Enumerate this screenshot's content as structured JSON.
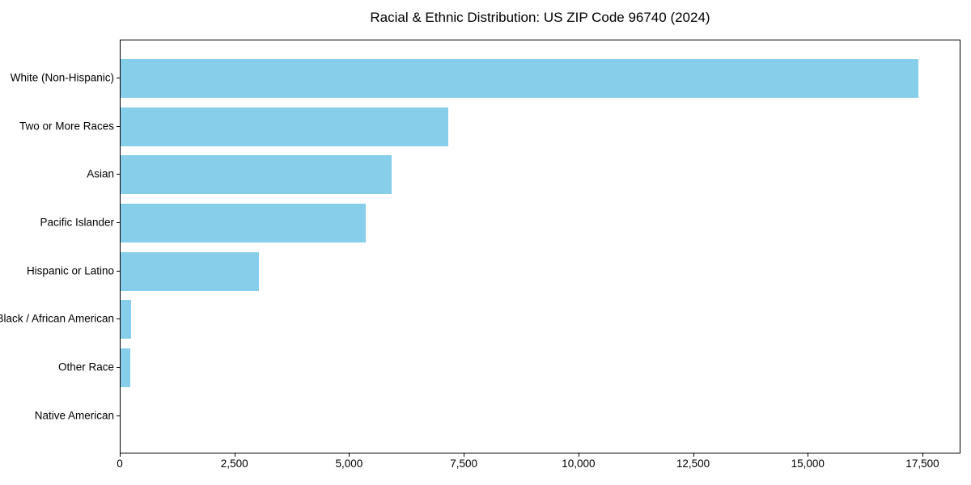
{
  "title": "Racial & Ethnic Distribution: US ZIP Code 96740 (2024)",
  "colors": {
    "bar": "#87CEEB",
    "axis": "#000000",
    "text": "#000000",
    "background": "#FFFFFF"
  },
  "chart_data": {
    "type": "bar",
    "orientation": "horizontal",
    "title": "Racial & Ethnic Distribution: US ZIP Code 96740 (2024)",
    "categories": [
      "White (Non-Hispanic)",
      "Two or More Races",
      "Asian",
      "Pacific Islander",
      "Hispanic or Latino",
      "Black / African American",
      "Other Race",
      "Native American"
    ],
    "values": [
      17430,
      7150,
      5915,
      5350,
      3020,
      230,
      215,
      0
    ],
    "xlabel": "",
    "ylabel": "",
    "xlim": [
      0,
      18330
    ],
    "xticks": [
      0,
      2500,
      5000,
      7500,
      10000,
      12500,
      15000,
      17500
    ],
    "xtick_labels": [
      "0",
      "2,500",
      "5,000",
      "7,500",
      "10,000",
      "12,500",
      "15,000",
      "17,500"
    ],
    "grid": false,
    "legend": null,
    "bar_color": "#87CEEB"
  }
}
